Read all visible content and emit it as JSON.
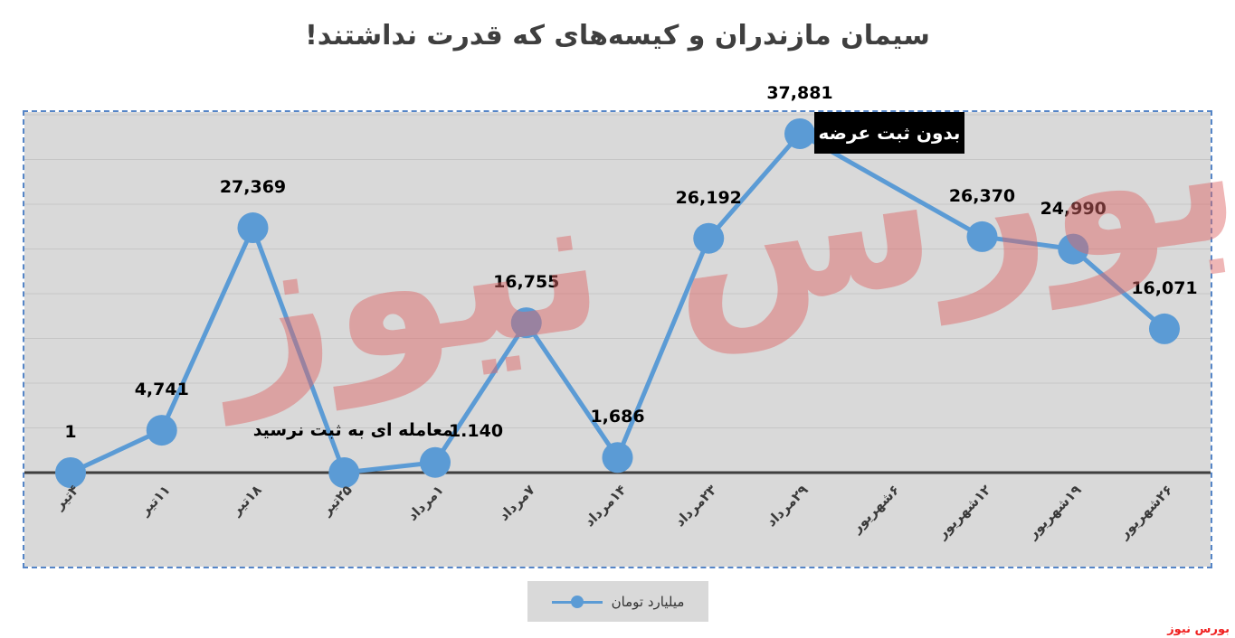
{
  "annotations": {
    "no_supply": "بدون ثبت عرضه"
  },
  "watermark": {
    "main": "بورس نیوز",
    "corner": "بورس نیوز"
  },
  "colors": {
    "line": "#5b9bd5",
    "marker": "#5b9bd5",
    "plot_bg": "#d9d9d9",
    "grid": "#c6c6c6",
    "axis": "#3f3f3f",
    "dashed_border": "#5585c7",
    "annotation_bg": "#000000",
    "annotation_text": "#ffffff",
    "watermark": "#de6868",
    "corner_text": "#f02020",
    "title_text": "#3f3f3f"
  },
  "chart_data": {
    "type": "line",
    "title": "سیمان مازندران و کیسه‌های که قدرت نداشتند!",
    "legend_label": "میلیارد تومان",
    "legend_position": "bottom",
    "grid": true,
    "grid_step": 5000,
    "ylim": [
      0,
      40000
    ],
    "xlabel": "",
    "ylabel": "",
    "categories": [
      "۴تیر",
      "۱۱تیر",
      "۱۸تیر",
      "۲۵تیر",
      "۱مرداد",
      "۷مرداد",
      "۱۴مرداد",
      "۲۳مرداد",
      "۲۹مرداد",
      "۶شهریور",
      "۱۲شهریور",
      "۱۹شهریور",
      "۲۶شهریور"
    ],
    "values": [
      1,
      4741,
      27369,
      0,
      1140,
      16755,
      1686,
      26192,
      37881,
      null,
      26370,
      24990,
      16071
    ],
    "labels": [
      "1",
      "4,741",
      "27,369",
      "معامله ای به ثبت نرسید",
      "1.140",
      "16,755",
      "1,686",
      "26,192",
      "37,881",
      null,
      "26,370",
      "24,990",
      "16,071"
    ],
    "label_offsets": {
      "3": {
        "dx": 10,
        "dy": -2
      },
      "4": {
        "dx": 45,
        "dy": 10
      }
    },
    "missing_point_note": {
      "index": 9,
      "text": "بدون ثبت عرضه"
    }
  }
}
